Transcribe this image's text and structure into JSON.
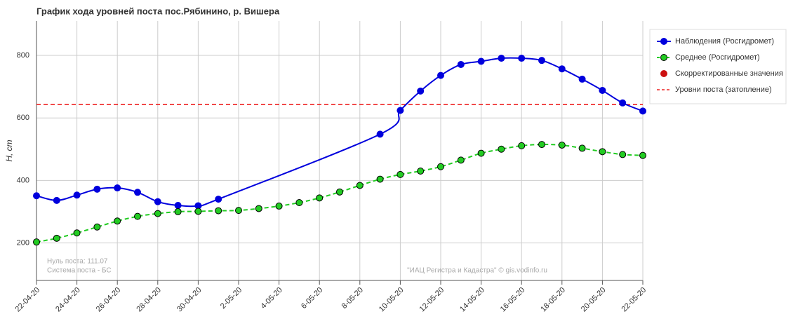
{
  "chart_data": {
    "type": "line",
    "title": "График хода уровней поста пос.Рябинино, р. Вишера",
    "y_label": "H, cm",
    "categories": [
      "22-04-20",
      null,
      "24-04-20",
      null,
      "26-04-20",
      null,
      "28-04-20",
      null,
      "30-04-20",
      null,
      "2-05-20",
      null,
      "4-05-20",
      null,
      "6-05-20",
      null,
      "8-05-20",
      null,
      "10-05-20",
      null,
      "12-05-20",
      null,
      "14-05-20",
      null,
      "16-05-20",
      null,
      "18-05-20",
      null,
      "20-05-20",
      null,
      "22-05-20"
    ],
    "series": [
      {
        "name": "Наблюдения (Росгидромет)",
        "color": "#0000dd",
        "dashed": false,
        "connect_gaps": true,
        "values": [
          351,
          336,
          353,
          372,
          376,
          362,
          332,
          320,
          319,
          340,
          null,
          null,
          null,
          null,
          null,
          null,
          null,
          548,
          624,
          686,
          736,
          771,
          781,
          791,
          791,
          784,
          757,
          724,
          688,
          648,
          622
        ]
      },
      {
        "name": "Среднее (Росгидромет)",
        "color": "#22cc22",
        "dashed": true,
        "connect_gaps": false,
        "values": [
          203,
          215,
          232,
          251,
          270,
          285,
          294,
          300,
          301,
          303,
          304,
          310,
          318,
          329,
          344,
          363,
          384,
          404,
          419,
          430,
          444,
          465,
          487,
          500,
          511,
          515,
          513,
          503,
          492,
          483,
          480
        ]
      },
      {
        "name": "Скорректированные значения",
        "color": "#cc1111",
        "dashed": false,
        "connect_gaps": false,
        "values": [
          null,
          null,
          null,
          null,
          null,
          null,
          null,
          null,
          null,
          null,
          null,
          null,
          null,
          null,
          null,
          null,
          null,
          null,
          null,
          null,
          null,
          null,
          null,
          null,
          null,
          null,
          null,
          null,
          null,
          null,
          null
        ]
      }
    ],
    "reference_line": {
      "name": "Уровни поста (затопление)",
      "value": 643,
      "color": "#ee2222"
    },
    "ylim": [
      80,
      910
    ],
    "yticks": [
      200,
      400,
      600,
      800
    ],
    "grid": true,
    "legend": "right",
    "annotations": [
      "Нуль поста: 111.07",
      "Система поста - БС",
      "\"ИАЦ Регистра и Кадастра\" © gis.vodinfo.ru"
    ]
  }
}
